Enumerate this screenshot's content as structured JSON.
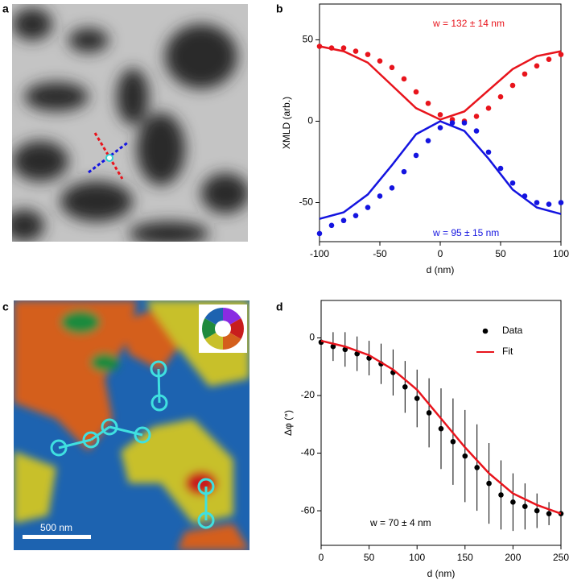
{
  "panel_labels": [
    "a",
    "b",
    "c",
    "d"
  ],
  "scale_bar": "500 nm",
  "chart_data": [
    {
      "type": "scatter-fit",
      "xlabel": "d (nm)",
      "ylabel": "XMLD (arb.)",
      "xlim": [
        -100,
        100
      ],
      "xticks": [
        -100,
        -50,
        0,
        50,
        100
      ],
      "ylim": [
        -74,
        72
      ],
      "yticks": [
        -50,
        0,
        50
      ],
      "annotations": [
        {
          "text": "w = 132 ± 14 nm",
          "color": "#e8141c"
        },
        {
          "text": "w = 95 ± 15 nm",
          "color": "#1414e0"
        }
      ],
      "series": [
        {
          "style": "points",
          "color": "#e8141c",
          "x": [
            -100,
            -90,
            -80,
            -70,
            -60,
            -50,
            -40,
            -30,
            -20,
            -10,
            0,
            10,
            20,
            30,
            40,
            50,
            60,
            70,
            80,
            90,
            100
          ],
          "values": [
            46,
            45,
            45,
            43,
            41,
            37,
            33,
            26,
            18,
            11,
            4,
            1,
            0,
            3,
            8,
            15,
            22,
            29,
            34,
            38,
            41
          ]
        },
        {
          "style": "line",
          "color": "#e8141c",
          "x": [
            -100,
            -80,
            -60,
            -40,
            -20,
            0,
            20,
            40,
            60,
            80,
            100
          ],
          "values": [
            46,
            43,
            36,
            22,
            8,
            1,
            6,
            19,
            32,
            40,
            43
          ]
        },
        {
          "style": "points",
          "color": "#1414e0",
          "x": [
            -100,
            -90,
            -80,
            -70,
            -60,
            -50,
            -40,
            -30,
            -20,
            -10,
            0,
            10,
            20,
            30,
            40,
            50,
            60,
            70,
            80,
            90,
            100
          ],
          "values": [
            -69,
            -64,
            -61,
            -58,
            -53,
            -46,
            -41,
            -31,
            -21,
            -12,
            -4,
            -1,
            -1,
            -6,
            -19,
            -29,
            -38,
            -46,
            -50,
            -51,
            -50
          ]
        },
        {
          "style": "line",
          "color": "#1414e0",
          "x": [
            -100,
            -80,
            -60,
            -40,
            -20,
            0,
            20,
            40,
            60,
            80,
            100
          ],
          "values": [
            -60,
            -56,
            -45,
            -27,
            -8,
            0,
            -6,
            -23,
            -42,
            -53,
            -57
          ]
        }
      ]
    },
    {
      "type": "scatter-fit",
      "xlabel": "d (nm)",
      "ylabel": "Δφ (°)",
      "xlim": [
        0,
        250
      ],
      "xticks": [
        0,
        50,
        100,
        150,
        200,
        250
      ],
      "ylim": [
        -72,
        13
      ],
      "yticks": [
        0,
        -20,
        -40,
        -60
      ],
      "legend": "upper right",
      "annotations": [
        {
          "text": "w = 70 ± 4 nm",
          "color": "#000000"
        }
      ],
      "series": [
        {
          "name": "Data",
          "style": "points",
          "color": "#000000",
          "x": [
            0,
            12.5,
            25,
            37.5,
            50,
            62.5,
            75,
            87.5,
            100,
            112.5,
            125,
            137.5,
            150,
            162.5,
            175,
            187.5,
            200,
            212.5,
            225,
            237.5,
            250
          ],
          "values": [
            -1.5,
            -3,
            -4,
            -5.5,
            -7,
            -9,
            -12,
            -17,
            -21,
            -26,
            -31.5,
            -36,
            -41,
            -45,
            -50.5,
            -54.5,
            -57,
            -58.5,
            -60,
            -61,
            -61
          ],
          "errors": [
            4,
            5,
            6,
            6,
            6,
            7,
            8,
            9,
            10,
            12,
            14,
            15,
            16,
            15,
            14,
            12,
            10,
            8,
            6,
            4,
            3
          ]
        },
        {
          "name": "Fit",
          "style": "line",
          "color": "#e8141c",
          "x": [
            0,
            25,
            50,
            75,
            100,
            125,
            150,
            175,
            200,
            225,
            250
          ],
          "values": [
            -1,
            -3,
            -6,
            -11,
            -18,
            -28,
            -38,
            -47,
            -54,
            -58,
            -61
          ]
        }
      ]
    }
  ]
}
